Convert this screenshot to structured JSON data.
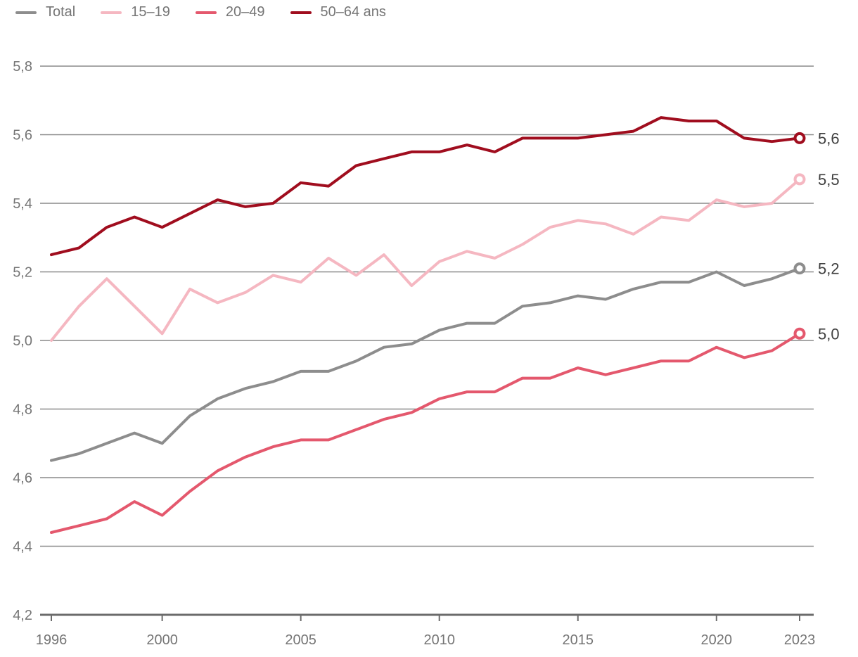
{
  "chart_data": {
    "type": "line",
    "title": "",
    "x_label": "",
    "y_label": "",
    "grid": true,
    "legend_position": "top-left",
    "x": [
      1996,
      1997,
      1998,
      1999,
      2000,
      2001,
      2002,
      2003,
      2004,
      2005,
      2006,
      2007,
      2008,
      2009,
      2010,
      2011,
      2012,
      2013,
      2014,
      2015,
      2016,
      2017,
      2018,
      2019,
      2020,
      2021,
      2022,
      2023
    ],
    "x_ticks": [
      {
        "value": 1996,
        "label": "1996"
      },
      {
        "value": 2000,
        "label": "2000"
      },
      {
        "value": 2005,
        "label": "2005"
      },
      {
        "value": 2010,
        "label": "2010"
      },
      {
        "value": 2015,
        "label": "2015"
      },
      {
        "value": 2020,
        "label": "2020"
      },
      {
        "value": 2023,
        "label": "2023"
      }
    ],
    "y_ticks": [
      {
        "value": 5.8,
        "label": "5,8"
      },
      {
        "value": 5.6,
        "label": "5,6"
      },
      {
        "value": 5.4,
        "label": "5,4"
      },
      {
        "value": 5.2,
        "label": "5,2"
      },
      {
        "value": 5.0,
        "label": "5,0"
      },
      {
        "value": 4.8,
        "label": "4,8"
      },
      {
        "value": 4.6,
        "label": "4,6"
      },
      {
        "value": 4.4,
        "label": "4,4"
      },
      {
        "value": 4.2,
        "label": "4,2"
      }
    ],
    "xlim": [
      1996,
      2023
    ],
    "ylim": [
      4.2,
      5.8
    ],
    "series": [
      {
        "name": "Total",
        "color": "#8D8D8D",
        "end_label": "5,2",
        "values": [
          4.65,
          4.67,
          4.7,
          4.73,
          4.7,
          4.78,
          4.83,
          4.86,
          4.88,
          4.91,
          4.91,
          4.94,
          4.98,
          4.99,
          5.03,
          5.05,
          5.05,
          5.1,
          5.11,
          5.13,
          5.12,
          5.15,
          5.17,
          5.17,
          5.2,
          5.16,
          5.18,
          5.21
        ]
      },
      {
        "name": "15–19",
        "color": "#F5B7C1",
        "end_label": "5,5",
        "values": [
          5.0,
          5.1,
          5.18,
          5.1,
          5.02,
          5.15,
          5.11,
          5.14,
          5.19,
          5.17,
          5.24,
          5.19,
          5.25,
          5.16,
          5.23,
          5.26,
          5.24,
          5.28,
          5.33,
          5.35,
          5.34,
          5.31,
          5.36,
          5.35,
          5.41,
          5.39,
          5.4,
          5.47
        ]
      },
      {
        "name": "20–49",
        "color": "#E4586D",
        "end_label": "5,0",
        "values": [
          4.44,
          4.46,
          4.48,
          4.53,
          4.49,
          4.56,
          4.62,
          4.66,
          4.69,
          4.71,
          4.71,
          4.74,
          4.77,
          4.79,
          4.83,
          4.85,
          4.85,
          4.89,
          4.89,
          4.92,
          4.9,
          4.92,
          4.94,
          4.94,
          4.98,
          4.95,
          4.97,
          5.02
        ]
      },
      {
        "name": "50–64 ans",
        "color": "#A00D1E",
        "end_label": "5,6",
        "values": [
          5.25,
          5.27,
          5.33,
          5.36,
          5.33,
          5.37,
          5.41,
          5.39,
          5.4,
          5.46,
          5.45,
          5.51,
          5.53,
          5.55,
          5.55,
          5.57,
          5.55,
          5.59,
          5.59,
          5.59,
          5.6,
          5.61,
          5.65,
          5.64,
          5.64,
          5.59,
          5.58,
          5.59
        ]
      }
    ],
    "colors": {
      "grid_line": "#8A8A8A",
      "axis_line": "#6B6B6B",
      "tick_label": "#757575",
      "end_label": "#3F3F3F",
      "background": "#FFFFFF"
    }
  }
}
